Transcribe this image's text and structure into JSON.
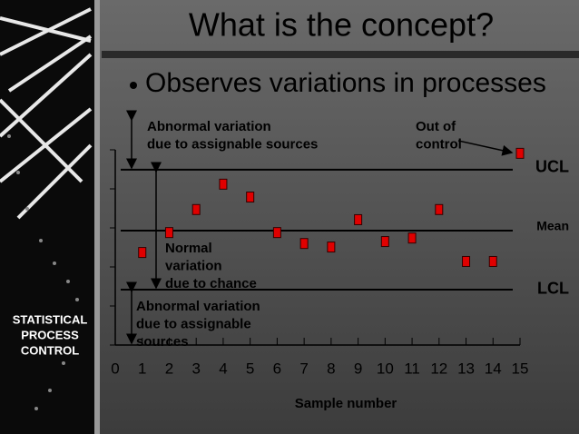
{
  "chart_data": {
    "type": "scatter",
    "title": "What is the concept?",
    "subtitle": "Observes variations in processes",
    "x_label": "Sample number",
    "x": [
      1,
      2,
      3,
      4,
      5,
      6,
      7,
      8,
      9,
      10,
      11,
      12,
      13,
      14,
      15
    ],
    "series": [
      {
        "color": "#e00000",
        "values": [
          2.37,
          2.88,
          3.47,
          4.12,
          3.79,
          2.88,
          2.6,
          2.51,
          3.21,
          2.65,
          2.74,
          3.47,
          2.14,
          2.14,
          4.91
        ]
      }
    ],
    "xlim": [
      0,
      15
    ],
    "xticks": [
      0,
      1,
      2,
      3,
      4,
      5,
      6,
      7,
      8,
      9,
      10,
      11,
      12,
      13,
      14,
      15
    ],
    "ylim": [
      0,
      5
    ],
    "yticks": [
      0,
      1,
      2,
      3,
      4,
      5
    ],
    "control_lines": [
      {
        "label": "UCL",
        "value": 4.49
      },
      {
        "label": "Mean",
        "value": 2.93
      },
      {
        "label": "LCL",
        "value": 1.42
      }
    ],
    "annotations": [
      {
        "lines": [
          "Abnormal variation",
          "due to assignable sources"
        ]
      },
      {
        "lines": [
          "Out of",
          "control"
        ]
      },
      {
        "lines": [
          "Normal",
          "variation",
          "due to chance"
        ]
      },
      {
        "lines": [
          "Abnormal variation",
          "due to assignable",
          "sources"
        ]
      }
    ],
    "side_label": [
      "STATISTICAL",
      "PROCESS",
      "CONTROL"
    ]
  }
}
